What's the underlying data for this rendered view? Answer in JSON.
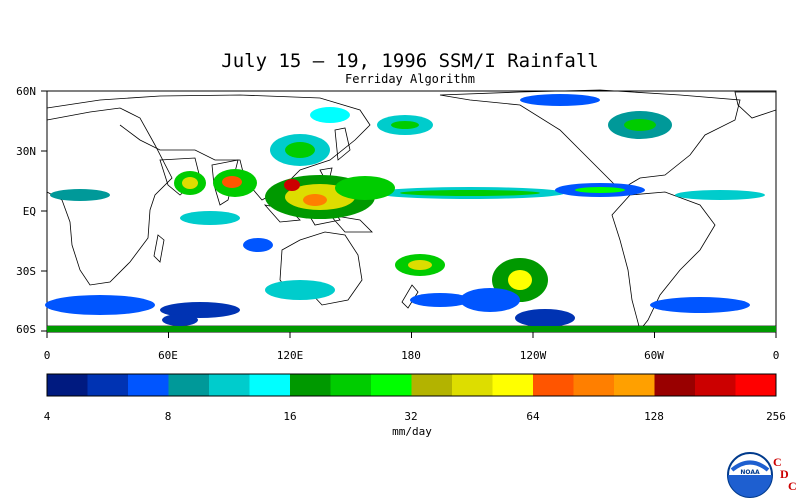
{
  "map": {
    "title": "July 15 – 19, 1996 SSM/I Rainfall",
    "subtitle": "Ferriday Algorithm",
    "lat_labels": [
      "60N",
      "30N",
      "EQ",
      "30S",
      "60S"
    ],
    "lon_labels": [
      "0",
      "60E",
      "120E",
      "180",
      "120W",
      "60W",
      "0"
    ],
    "colorbar": {
      "tick_labels": [
        "4",
        "8",
        "16",
        "32",
        "64",
        "128",
        "256"
      ],
      "unit_label": "mm/day",
      "colors": [
        "#001a80",
        "#0033b3",
        "#0055ff",
        "#009999",
        "#00cccc",
        "#00ffff",
        "#009900",
        "#00cc00",
        "#00ff00",
        "#b3b300",
        "#dddd00",
        "#ffff00",
        "#ff5500",
        "#ff7f00",
        "#ffa000",
        "#990000",
        "#cc0000",
        "#ff0000"
      ]
    }
  },
  "logo": {
    "text": "NOAA",
    "letters": [
      "C",
      "D",
      "C"
    ]
  }
}
